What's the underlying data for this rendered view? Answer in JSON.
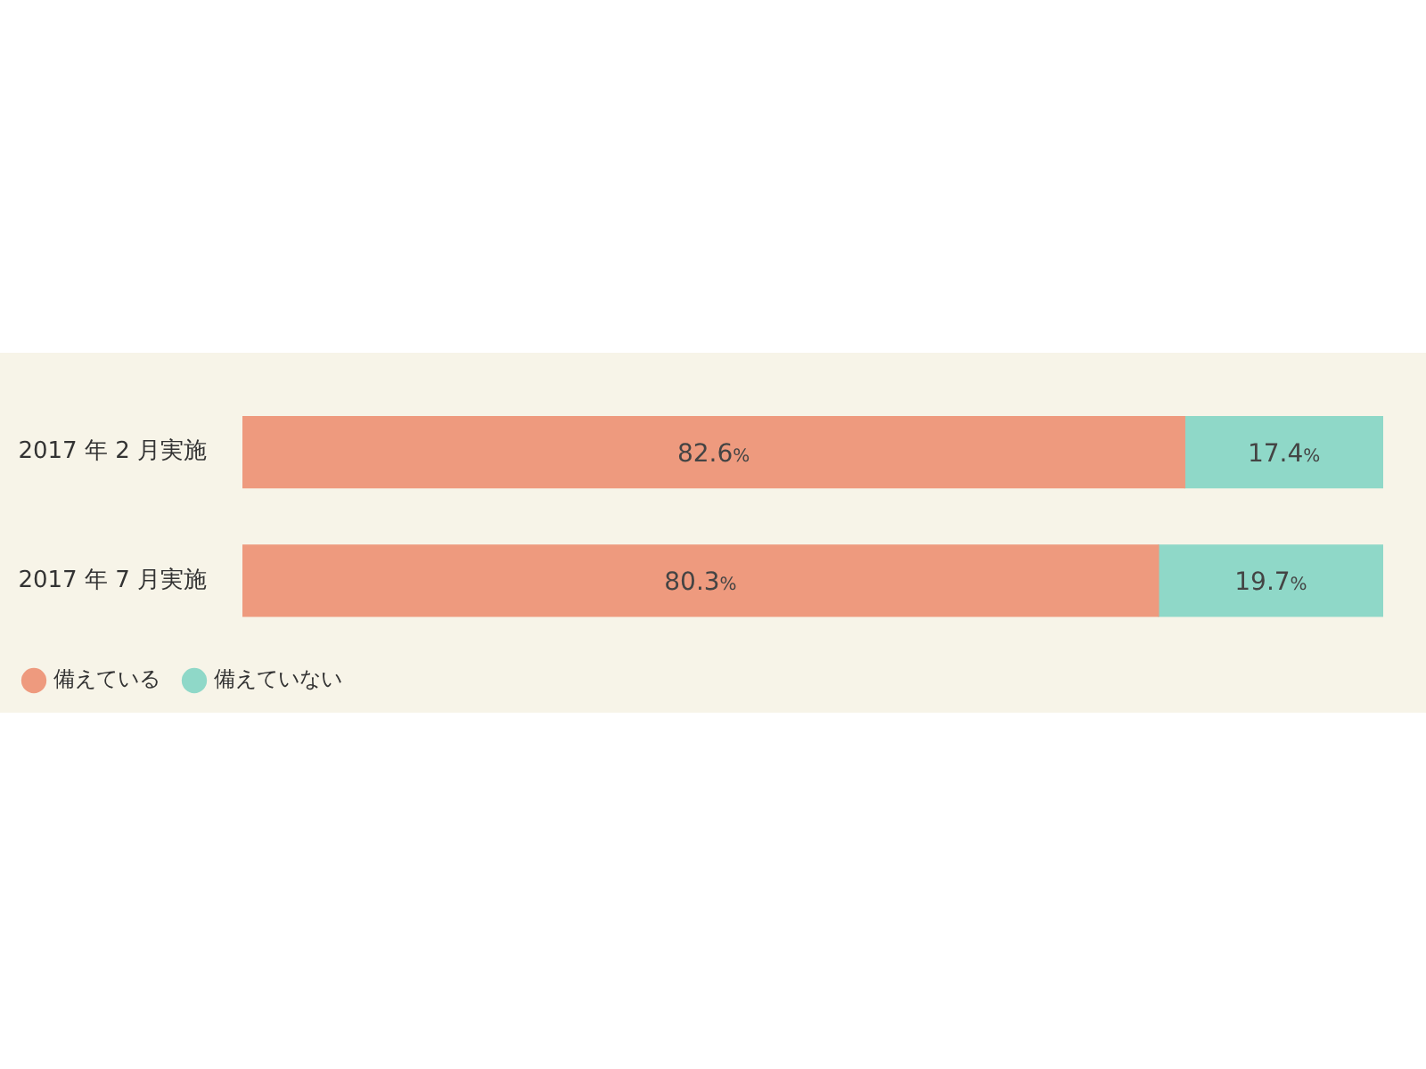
{
  "chart_data": {
    "type": "bar",
    "orientation": "horizontal",
    "stacked": true,
    "categories": [
      "2017 年 2 月実施",
      "2017 年 7 月実施"
    ],
    "series": [
      {
        "name": "備えている",
        "color": "#ee9a7e",
        "values": [
          82.6,
          80.3
        ],
        "value_labels": [
          "82.6%",
          "80.3%"
        ]
      },
      {
        "name": "備えていない",
        "color": "#8fd8c8",
        "values": [
          17.4,
          19.7
        ],
        "value_labels": [
          "17.4%",
          "19.7%"
        ]
      }
    ],
    "xlim": [
      0,
      100
    ],
    "tick_labels": "y",
    "legend": "bottom left"
  }
}
